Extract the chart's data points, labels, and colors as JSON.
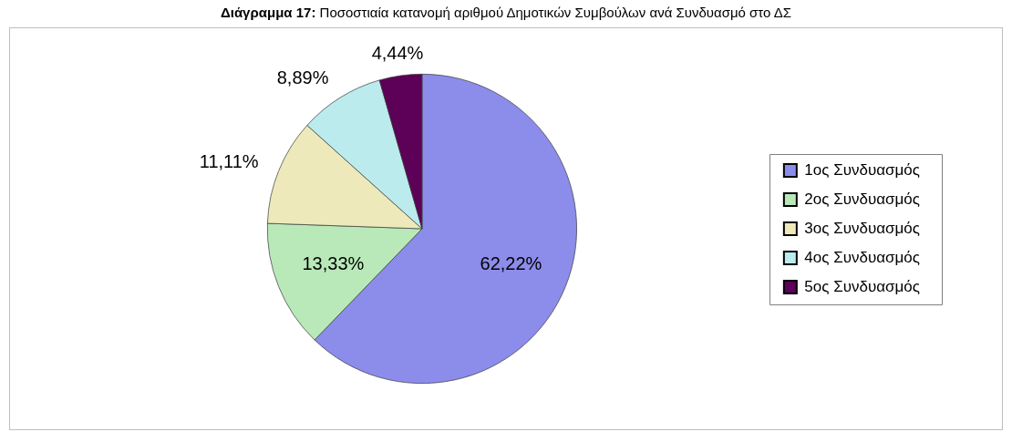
{
  "chart_data": {
    "type": "pie",
    "title": "Διάγραμμα 17: Ποσοστιαία κατανομή αριθμού Δημοτικών Συμβούλων ανά Συνδυασμό στο ΔΣ",
    "categories": [
      "1ος Συνδυασμός",
      "2ος Συνδυασμός",
      "3ος Συνδυασμός",
      "4ος Συνδυασμός",
      "5ος Συνδυασμός"
    ],
    "values": [
      62.22,
      13.33,
      11.11,
      8.89,
      4.44
    ],
    "colors": [
      "#8c8ceb",
      "#b9e9b9",
      "#ede9bb",
      "#bbebed",
      "#5c0058"
    ],
    "value_labels": [
      "62,22%",
      "13,33%",
      "11,11%",
      "8,89%",
      "4,44%"
    ],
    "legend": "right"
  }
}
